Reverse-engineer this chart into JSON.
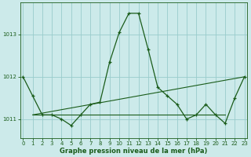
{
  "title": "Graphe pression niveau de la mer (hPa)",
  "background_color": "#cceaea",
  "grid_color": "#99cccc",
  "line_color": "#1a5c1a",
  "xlim": [
    -0.3,
    23.3
  ],
  "ylim": [
    1010.55,
    1013.75
  ],
  "yticks": [
    1011,
    1012,
    1013
  ],
  "xticks": [
    0,
    1,
    2,
    3,
    4,
    5,
    6,
    7,
    8,
    9,
    10,
    11,
    12,
    13,
    14,
    15,
    16,
    17,
    18,
    19,
    20,
    21,
    22,
    23
  ],
  "main_x": [
    0,
    1,
    2,
    3,
    4,
    5,
    6,
    7,
    8,
    9,
    10,
    11,
    12,
    13,
    14,
    15,
    16,
    17,
    18,
    19,
    20,
    21,
    22,
    23
  ],
  "main_y": [
    1012.0,
    1011.55,
    1011.1,
    1011.1,
    1011.0,
    1010.85,
    1011.1,
    1011.35,
    1011.4,
    1012.35,
    1013.05,
    1013.5,
    1013.5,
    1012.65,
    1011.75,
    1011.55,
    1011.35,
    1011.0,
    1011.1,
    1011.35,
    1011.1,
    1010.9,
    1011.5,
    1012.0
  ],
  "flat_x": [
    1,
    2,
    3,
    4,
    5,
    6,
    7,
    15,
    16,
    17,
    18,
    19,
    20,
    21
  ],
  "flat_y": [
    1011.1,
    1011.1,
    1011.1,
    1011.1,
    1011.1,
    1011.1,
    1011.1,
    1011.1,
    1011.1,
    1011.1,
    1011.1,
    1011.1,
    1011.1,
    1011.1
  ],
  "trend_x": [
    1,
    23
  ],
  "trend_y": [
    1011.1,
    1012.0
  ],
  "ylabel_fontsize": 5.5,
  "xlabel_fontsize": 6,
  "tick_fontsize": 5
}
